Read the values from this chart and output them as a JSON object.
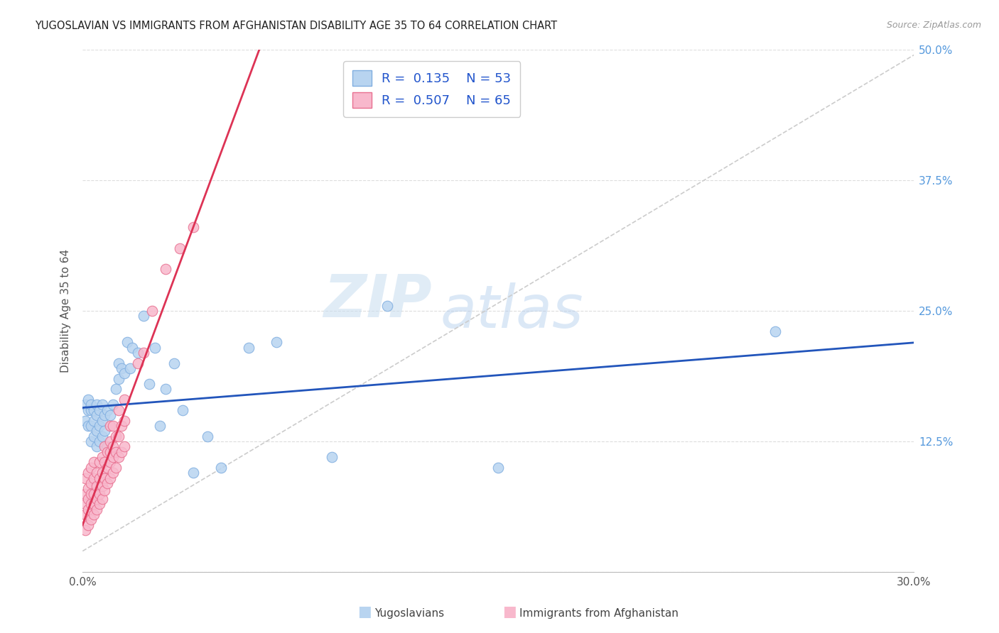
{
  "title": "YUGOSLAVIAN VS IMMIGRANTS FROM AFGHANISTAN DISABILITY AGE 35 TO 64 CORRELATION CHART",
  "source": "Source: ZipAtlas.com",
  "ylabel": "Disability Age 35 to 64",
  "xlim": [
    0.0,
    0.3
  ],
  "ylim": [
    0.0,
    0.5
  ],
  "background_color": "#ffffff",
  "series1_color": "#b8d4f0",
  "series1_edge_color": "#80aee0",
  "series2_color": "#f8b8cc",
  "series2_edge_color": "#e87090",
  "line1_color": "#2255bb",
  "line2_color": "#dd3355",
  "dashed_line_color": "#cccccc",
  "grid_color": "#dddddd",
  "R1": 0.135,
  "N1": 53,
  "R2": 0.507,
  "N2": 65,
  "watermark_zip": "ZIP",
  "watermark_atlas": "atlas",
  "legend_label1": "Yugoslavians",
  "legend_label2": "Immigrants from Afghanistan",
  "yug_x": [
    0.001,
    0.001,
    0.002,
    0.002,
    0.002,
    0.003,
    0.003,
    0.003,
    0.003,
    0.004,
    0.004,
    0.004,
    0.005,
    0.005,
    0.005,
    0.005,
    0.006,
    0.006,
    0.006,
    0.007,
    0.007,
    0.007,
    0.008,
    0.008,
    0.009,
    0.009,
    0.01,
    0.011,
    0.012,
    0.013,
    0.013,
    0.014,
    0.015,
    0.016,
    0.017,
    0.018,
    0.02,
    0.022,
    0.024,
    0.026,
    0.028,
    0.03,
    0.033,
    0.036,
    0.04,
    0.045,
    0.05,
    0.06,
    0.07,
    0.09,
    0.11,
    0.15,
    0.25
  ],
  "yug_y": [
    0.16,
    0.145,
    0.14,
    0.155,
    0.165,
    0.125,
    0.14,
    0.155,
    0.16,
    0.13,
    0.145,
    0.155,
    0.12,
    0.135,
    0.15,
    0.16,
    0.125,
    0.14,
    0.155,
    0.13,
    0.145,
    0.16,
    0.135,
    0.15,
    0.12,
    0.155,
    0.15,
    0.16,
    0.175,
    0.185,
    0.2,
    0.195,
    0.19,
    0.22,
    0.195,
    0.215,
    0.21,
    0.245,
    0.18,
    0.215,
    0.14,
    0.175,
    0.2,
    0.155,
    0.095,
    0.13,
    0.1,
    0.215,
    0.22,
    0.11,
    0.255,
    0.1,
    0.23
  ],
  "afg_x": [
    0.001,
    0.001,
    0.001,
    0.001,
    0.001,
    0.002,
    0.002,
    0.002,
    0.002,
    0.002,
    0.003,
    0.003,
    0.003,
    0.003,
    0.003,
    0.004,
    0.004,
    0.004,
    0.004,
    0.004,
    0.005,
    0.005,
    0.005,
    0.005,
    0.006,
    0.006,
    0.006,
    0.006,
    0.007,
    0.007,
    0.007,
    0.007,
    0.008,
    0.008,
    0.008,
    0.008,
    0.009,
    0.009,
    0.009,
    0.01,
    0.01,
    0.01,
    0.01,
    0.01,
    0.011,
    0.011,
    0.011,
    0.011,
    0.012,
    0.012,
    0.012,
    0.013,
    0.013,
    0.013,
    0.014,
    0.014,
    0.015,
    0.015,
    0.015,
    0.02,
    0.022,
    0.025,
    0.03,
    0.035,
    0.04
  ],
  "afg_y": [
    0.04,
    0.055,
    0.065,
    0.075,
    0.09,
    0.045,
    0.06,
    0.07,
    0.08,
    0.095,
    0.05,
    0.065,
    0.075,
    0.085,
    0.1,
    0.055,
    0.065,
    0.075,
    0.09,
    0.105,
    0.06,
    0.07,
    0.082,
    0.095,
    0.065,
    0.075,
    0.09,
    0.105,
    0.07,
    0.082,
    0.095,
    0.11,
    0.078,
    0.09,
    0.105,
    0.12,
    0.085,
    0.1,
    0.115,
    0.09,
    0.105,
    0.115,
    0.125,
    0.14,
    0.095,
    0.11,
    0.12,
    0.14,
    0.1,
    0.115,
    0.13,
    0.11,
    0.13,
    0.155,
    0.115,
    0.14,
    0.12,
    0.145,
    0.165,
    0.2,
    0.21,
    0.25,
    0.29,
    0.31,
    0.33
  ]
}
